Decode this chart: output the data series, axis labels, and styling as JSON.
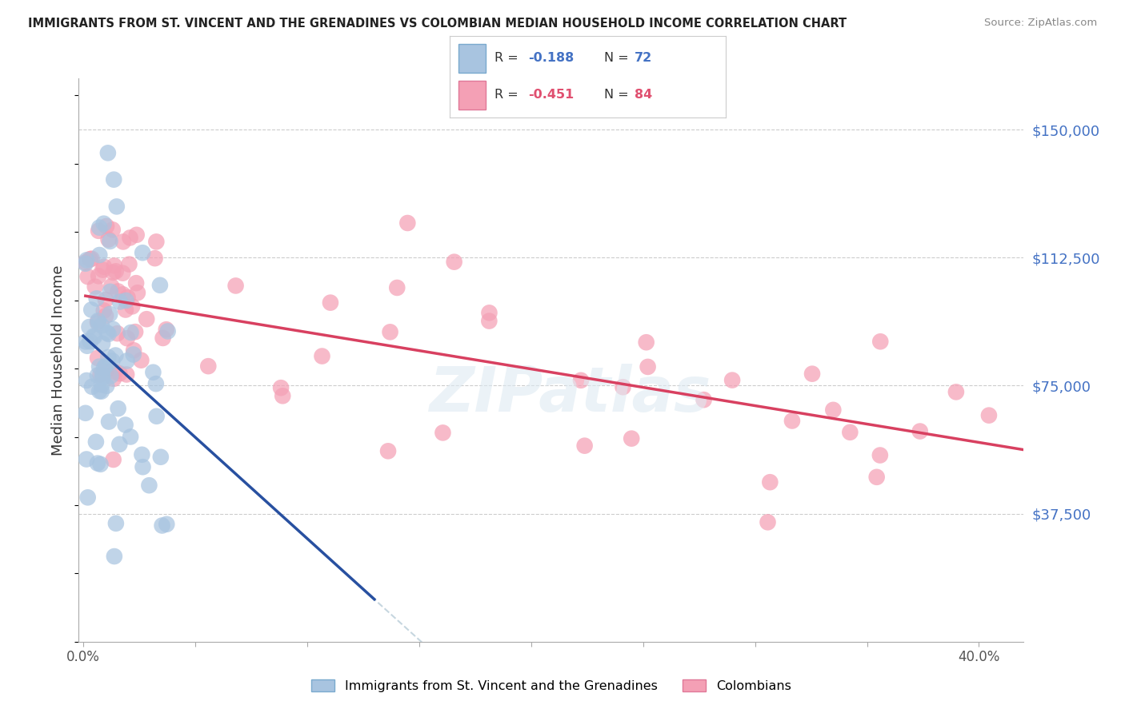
{
  "title": "IMMIGRANTS FROM ST. VINCENT AND THE GRENADINES VS COLOMBIAN MEDIAN HOUSEHOLD INCOME CORRELATION CHART",
  "source": "Source: ZipAtlas.com",
  "ylabel": "Median Household Income",
  "ytick_labels": [
    "$37,500",
    "$75,000",
    "$112,500",
    "$150,000"
  ],
  "ytick_values": [
    37500,
    75000,
    112500,
    150000
  ],
  "ylim": [
    0,
    165000
  ],
  "xlim": [
    -0.002,
    0.42
  ],
  "blue_color": "#a8c4e0",
  "blue_edge_color": "#7aaace",
  "pink_color": "#f4a0b5",
  "pink_edge_color": "#e07898",
  "blue_line_color": "#2850a0",
  "pink_line_color": "#d84060",
  "dashed_color": "#b8ccd8",
  "watermark_color": "#deeaf2",
  "title_color": "#222222",
  "source_color": "#888888",
  "ytick_color": "#4472c4",
  "xtick_color": "#555555",
  "ylabel_color": "#333333",
  "legend_r1_R": "-0.188",
  "legend_r1_N": "72",
  "legend_r2_R": "-0.451",
  "legend_r2_N": "84",
  "legend_color_blue": "#4472c4",
  "legend_color_pink": "#e05070",
  "legend_label1": "Immigrants from St. Vincent and the Grenadines",
  "legend_label2": "Colombians",
  "watermark_text": "ZIPatlas",
  "seed_blue": 42,
  "seed_pink": 99,
  "n_blue": 72,
  "n_pink": 84
}
